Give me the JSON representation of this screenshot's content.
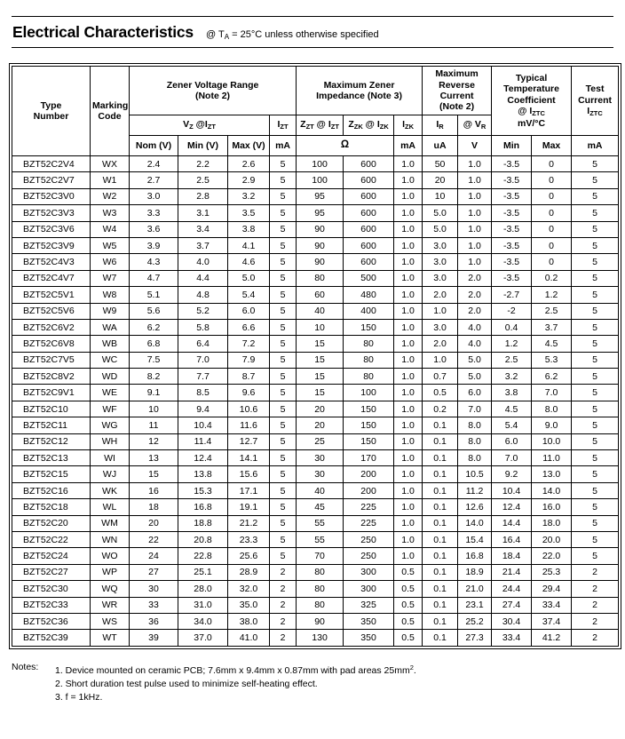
{
  "page": {
    "title": "Electrical Characteristics",
    "subtitle": "@ T~A~ = 25°C unless otherwise specified"
  },
  "table": {
    "header_rows": [
      [
        {
          "label": "Type\nNumber",
          "rowspan": 3,
          "name": "col-header-type-number"
        },
        {
          "label": "Marking\nCode",
          "rowspan": 3,
          "name": "col-header-marking-code"
        },
        {
          "label": "Zener Voltage Range\n(Note 2)",
          "colspan": 4,
          "name": "col-group-zener-voltage-range"
        },
        {
          "label": "Maximum Zener\nImpedance (Note 3)",
          "colspan": 3,
          "name": "col-group-max-zener-impedance"
        },
        {
          "label": "Maximum\nReverse\nCurrent\n(Note 2)",
          "colspan": 2,
          "name": "col-group-max-reverse-current"
        },
        {
          "label": "Typical\nTemperature\nCoefficient\n@ I~ZTC~\nmV/°C",
          "colspan": 2,
          "rowspan": 2,
          "name": "col-group-typical-temp-coefficient"
        },
        {
          "label": "Test\nCurrent\nI~ZTC~",
          "rowspan": 2,
          "name": "col-header-test-current"
        }
      ],
      [
        {
          "label": "V~Z~ @I~ZT~",
          "colspan": 3,
          "name": "col-header-vz-at-izt"
        },
        {
          "label": "I~ZT~",
          "name": "col-header-izt"
        },
        {
          "label": "Z~ZT~ @ I~ZT~",
          "name": "col-header-zzt-at-izt"
        },
        {
          "label": "Z~ZK~ @ I~ZK~",
          "name": "col-header-zzk-at-izk"
        },
        {
          "label": "I~ZK~",
          "name": "col-header-izk"
        },
        {
          "label": "I~R~",
          "name": "col-header-ir"
        },
        {
          "label": "@ V~R~",
          "name": "col-header-at-vr"
        }
      ],
      [
        {
          "label": "Nom (V)",
          "name": "col-header-nom-v"
        },
        {
          "label": "Min (V)",
          "name": "col-header-min-v"
        },
        {
          "label": "Max (V)",
          "name": "col-header-max-v"
        },
        {
          "label": "mA",
          "name": "col-unit-ma"
        },
        {
          "label": "Ω",
          "colspan": 2,
          "omega": true,
          "name": "col-unit-ohm"
        },
        {
          "label": "mA",
          "name": "col-unit-ma"
        },
        {
          "label": "uA",
          "name": "col-unit-ua"
        },
        {
          "label": "V",
          "name": "col-unit-v"
        },
        {
          "label": "Min",
          "name": "col-header-min"
        },
        {
          "label": "Max",
          "name": "col-header-max"
        },
        {
          "label": "mA",
          "name": "col-unit-ma"
        }
      ]
    ],
    "rows": [
      [
        "BZT52C2V4",
        "WX",
        "2.4",
        "2.2",
        "2.6",
        "5",
        "100",
        "600",
        "1.0",
        "50",
        "1.0",
        "-3.5",
        "0",
        "5"
      ],
      [
        "BZT52C2V7",
        "W1",
        "2.7",
        "2.5",
        "2.9",
        "5",
        "100",
        "600",
        "1.0",
        "20",
        "1.0",
        "-3.5",
        "0",
        "5"
      ],
      [
        "BZT52C3V0",
        "W2",
        "3.0",
        "2.8",
        "3.2",
        "5",
        "95",
        "600",
        "1.0",
        "10",
        "1.0",
        "-3.5",
        "0",
        "5"
      ],
      [
        "BZT52C3V3",
        "W3",
        "3.3",
        "3.1",
        "3.5",
        "5",
        "95",
        "600",
        "1.0",
        "5.0",
        "1.0",
        "-3.5",
        "0",
        "5"
      ],
      [
        "BZT52C3V6",
        "W4",
        "3.6",
        "3.4",
        "3.8",
        "5",
        "90",
        "600",
        "1.0",
        "5.0",
        "1.0",
        "-3.5",
        "0",
        "5"
      ],
      [
        "BZT52C3V9",
        "W5",
        "3.9",
        "3.7",
        "4.1",
        "5",
        "90",
        "600",
        "1.0",
        "3.0",
        "1.0",
        "-3.5",
        "0",
        "5"
      ],
      [
        "BZT52C4V3",
        "W6",
        "4.3",
        "4.0",
        "4.6",
        "5",
        "90",
        "600",
        "1.0",
        "3.0",
        "1.0",
        "-3.5",
        "0",
        "5"
      ],
      [
        "BZT52C4V7",
        "W7",
        "4.7",
        "4.4",
        "5.0",
        "5",
        "80",
        "500",
        "1.0",
        "3.0",
        "2.0",
        "-3.5",
        "0.2",
        "5"
      ],
      [
        "BZT52C5V1",
        "W8",
        "5.1",
        "4.8",
        "5.4",
        "5",
        "60",
        "480",
        "1.0",
        "2.0",
        "2.0",
        "-2.7",
        "1.2",
        "5"
      ],
      [
        "BZT52C5V6",
        "W9",
        "5.6",
        "5.2",
        "6.0",
        "5",
        "40",
        "400",
        "1.0",
        "1.0",
        "2.0",
        "-2",
        "2.5",
        "5"
      ],
      [
        "BZT52C6V2",
        "WA",
        "6.2",
        "5.8",
        "6.6",
        "5",
        "10",
        "150",
        "1.0",
        "3.0",
        "4.0",
        "0.4",
        "3.7",
        "5"
      ],
      [
        "BZT52C6V8",
        "WB",
        "6.8",
        "6.4",
        "7.2",
        "5",
        "15",
        "80",
        "1.0",
        "2.0",
        "4.0",
        "1.2",
        "4.5",
        "5"
      ],
      [
        "BZT52C7V5",
        "WC",
        "7.5",
        "7.0",
        "7.9",
        "5",
        "15",
        "80",
        "1.0",
        "1.0",
        "5.0",
        "2.5",
        "5.3",
        "5"
      ],
      [
        "BZT52C8V2",
        "WD",
        "8.2",
        "7.7",
        "8.7",
        "5",
        "15",
        "80",
        "1.0",
        "0.7",
        "5.0",
        "3.2",
        "6.2",
        "5"
      ],
      [
        "BZT52C9V1",
        "WE",
        "9.1",
        "8.5",
        "9.6",
        "5",
        "15",
        "100",
        "1.0",
        "0.5",
        "6.0",
        "3.8",
        "7.0",
        "5"
      ],
      [
        "BZT52C10",
        "WF",
        "10",
        "9.4",
        "10.6",
        "5",
        "20",
        "150",
        "1.0",
        "0.2",
        "7.0",
        "4.5",
        "8.0",
        "5"
      ],
      [
        "BZT52C11",
        "WG",
        "11",
        "10.4",
        "11.6",
        "5",
        "20",
        "150",
        "1.0",
        "0.1",
        "8.0",
        "5.4",
        "9.0",
        "5"
      ],
      [
        "BZT52C12",
        "WH",
        "12",
        "11.4",
        "12.7",
        "5",
        "25",
        "150",
        "1.0",
        "0.1",
        "8.0",
        "6.0",
        "10.0",
        "5"
      ],
      [
        "BZT52C13",
        "WI",
        "13",
        "12.4",
        "14.1",
        "5",
        "30",
        "170",
        "1.0",
        "0.1",
        "8.0",
        "7.0",
        "11.0",
        "5"
      ],
      [
        "BZT52C15",
        "WJ",
        "15",
        "13.8",
        "15.6",
        "5",
        "30",
        "200",
        "1.0",
        "0.1",
        "10.5",
        "9.2",
        "13.0",
        "5"
      ],
      [
        "BZT52C16",
        "WK",
        "16",
        "15.3",
        "17.1",
        "5",
        "40",
        "200",
        "1.0",
        "0.1",
        "11.2",
        "10.4",
        "14.0",
        "5"
      ],
      [
        "BZT52C18",
        "WL",
        "18",
        "16.8",
        "19.1",
        "5",
        "45",
        "225",
        "1.0",
        "0.1",
        "12.6",
        "12.4",
        "16.0",
        "5"
      ],
      [
        "BZT52C20",
        "WM",
        "20",
        "18.8",
        "21.2",
        "5",
        "55",
        "225",
        "1.0",
        "0.1",
        "14.0",
        "14.4",
        "18.0",
        "5"
      ],
      [
        "BZT52C22",
        "WN",
        "22",
        "20.8",
        "23.3",
        "5",
        "55",
        "250",
        "1.0",
        "0.1",
        "15.4",
        "16.4",
        "20.0",
        "5"
      ],
      [
        "BZT52C24",
        "WO",
        "24",
        "22.8",
        "25.6",
        "5",
        "70",
        "250",
        "1.0",
        "0.1",
        "16.8",
        "18.4",
        "22.0",
        "5"
      ],
      [
        "BZT52C27",
        "WP",
        "27",
        "25.1",
        "28.9",
        "2",
        "80",
        "300",
        "0.5",
        "0.1",
        "18.9",
        "21.4",
        "25.3",
        "2"
      ],
      [
        "BZT52C30",
        "WQ",
        "30",
        "28.0",
        "32.0",
        "2",
        "80",
        "300",
        "0.5",
        "0.1",
        "21.0",
        "24.4",
        "29.4",
        "2"
      ],
      [
        "BZT52C33",
        "WR",
        "33",
        "31.0",
        "35.0",
        "2",
        "80",
        "325",
        "0.5",
        "0.1",
        "23.1",
        "27.4",
        "33.4",
        "2"
      ],
      [
        "BZT52C36",
        "WS",
        "36",
        "34.0",
        "38.0",
        "2",
        "90",
        "350",
        "0.5",
        "0.1",
        "25.2",
        "30.4",
        "37.4",
        "2"
      ],
      [
        "BZT52C39",
        "WT",
        "39",
        "37.0",
        "41.0",
        "2",
        "130",
        "350",
        "0.5",
        "0.1",
        "27.3",
        "33.4",
        "41.2",
        "2"
      ]
    ]
  },
  "notes": {
    "label": "Notes:",
    "items": [
      "1. Device mounted on ceramic PCB; 7.6mm x 9.4mm x 0.87mm with pad areas 25mm^2^.",
      "2. Short duration test pulse used to minimize self-heating effect.",
      "3. f = 1kHz."
    ]
  }
}
